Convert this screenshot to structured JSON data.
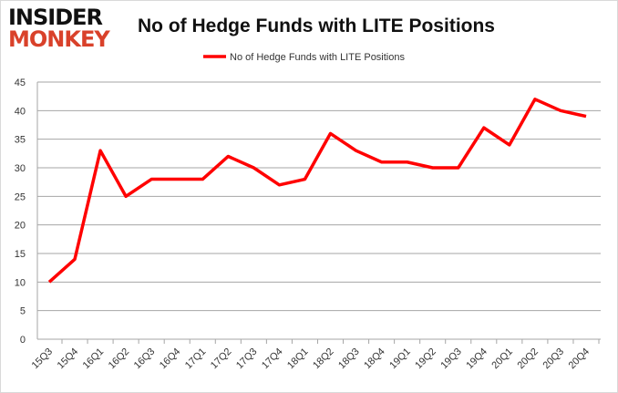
{
  "logo": {
    "line1": "INSIDER",
    "line2": "MONKEY"
  },
  "chart_data": {
    "type": "line",
    "title": "No of Hedge Funds with LITE Positions",
    "xlabel": "",
    "ylabel": "",
    "categories": [
      "15Q3",
      "15Q4",
      "16Q1",
      "16Q2",
      "16Q3",
      "16Q4",
      "17Q1",
      "17Q2",
      "17Q3",
      "17Q4",
      "18Q1",
      "18Q2",
      "18Q3",
      "18Q4",
      "19Q1",
      "19Q2",
      "19Q3",
      "19Q4",
      "20Q1",
      "20Q2",
      "20Q3",
      "20Q4"
    ],
    "series": [
      {
        "name": "No of Hedge Funds with LITE Positions",
        "color": "#ff0000",
        "values": [
          10,
          14,
          33,
          25,
          28,
          28,
          28,
          32,
          30,
          27,
          28,
          36,
          33,
          31,
          31,
          30,
          30,
          37,
          34,
          42,
          40,
          39
        ]
      }
    ],
    "ylim": [
      0,
      45
    ],
    "yticks": [
      0,
      5,
      10,
      15,
      20,
      25,
      30,
      35,
      40,
      45
    ],
    "grid": true,
    "legend": "top"
  }
}
